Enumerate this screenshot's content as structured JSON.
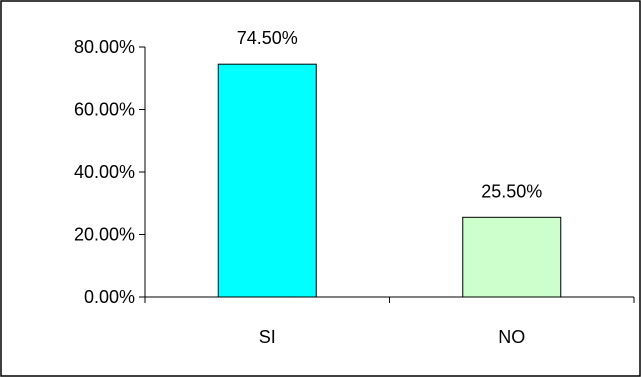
{
  "chart_data": {
    "type": "bar",
    "categories": [
      "SI",
      "NO"
    ],
    "values": [
      74.5,
      25.5
    ],
    "data_labels": [
      "74.50%",
      "25.50%"
    ],
    "bar_colors": [
      "#00ffff",
      "#ccffcc"
    ],
    "ylim": [
      0,
      80
    ],
    "yticks": [
      0,
      20,
      40,
      60,
      80
    ],
    "ytick_labels": [
      "0.00%",
      "20.00%",
      "40.00%",
      "60.00%",
      "80.00%"
    ],
    "title": "",
    "xlabel": "",
    "ylabel": "",
    "grid": false,
    "legend": "none"
  }
}
